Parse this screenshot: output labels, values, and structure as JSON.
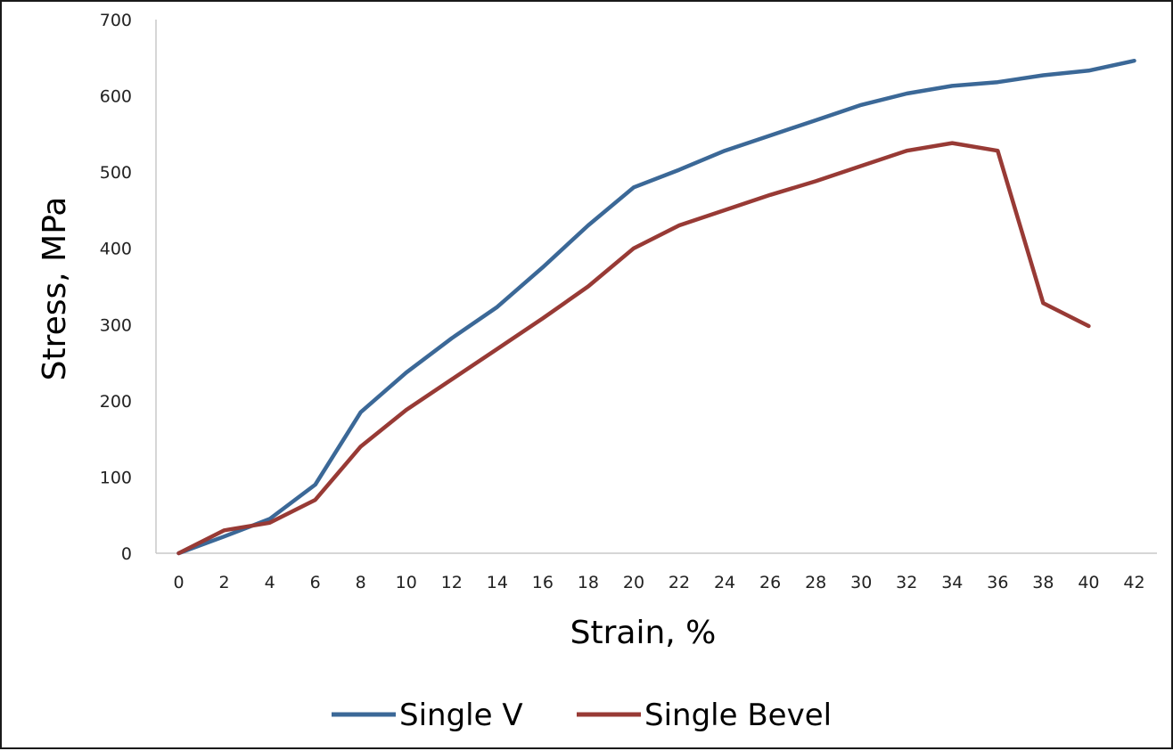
{
  "chart_data": {
    "type": "line",
    "title": "",
    "xlabel": "Strain, %",
    "ylabel": "Stress, MPa",
    "xlim": [
      0,
      42
    ],
    "ylim": [
      0,
      700
    ],
    "x_ticks": [
      "0",
      "2",
      "4",
      "6",
      "8",
      "10",
      "12",
      "14",
      "16",
      "18",
      "20",
      "22",
      "24",
      "26",
      "28",
      "30",
      "32",
      "34",
      "36",
      "38",
      "40",
      "42"
    ],
    "y_ticks": [
      "0",
      "100",
      "200",
      "300",
      "400",
      "500",
      "600",
      "700"
    ],
    "grid": false,
    "legend_position": "bottom",
    "series": [
      {
        "name": "Single V",
        "color": "#3b6897",
        "x": [
          0,
          2,
          4,
          6,
          8,
          10,
          12,
          14,
          16,
          18,
          20,
          22,
          24,
          26,
          28,
          30,
          32,
          34,
          36,
          38,
          40,
          42
        ],
        "values": [
          0,
          22,
          45,
          90,
          185,
          237,
          282,
          323,
          375,
          430,
          480,
          503,
          528,
          548,
          568,
          588,
          603,
          613,
          618,
          627,
          633,
          646
        ]
      },
      {
        "name": "Single Bevel",
        "color": "#983a35",
        "x": [
          0,
          2,
          4,
          6,
          8,
          10,
          12,
          14,
          16,
          18,
          20,
          22,
          24,
          26,
          28,
          30,
          32,
          34,
          36,
          38,
          40
        ],
        "values": [
          0,
          30,
          40,
          70,
          140,
          188,
          228,
          268,
          308,
          350,
          400,
          430,
          450,
          470,
          488,
          508,
          528,
          538,
          528,
          328,
          298
        ]
      }
    ]
  }
}
